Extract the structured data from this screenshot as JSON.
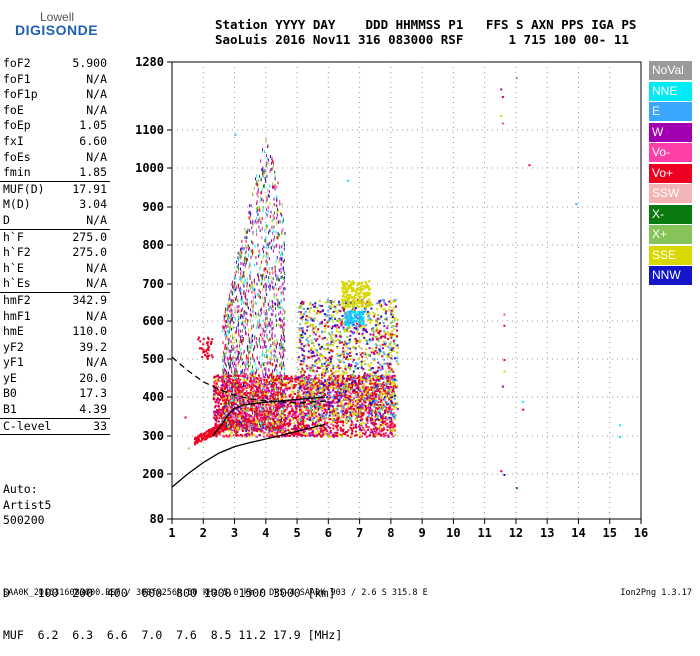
{
  "logo": {
    "brand_top": "Lowell",
    "brand_bottom": "DIGISONDE"
  },
  "header": {
    "line1": "Station YYYY DAY    DDD HHMMSS P1   FFS S AXN PPS IGA PS",
    "line2": "SaoLuis 2016 Nov11 316 083000 RSF      1 715 100 00- 11"
  },
  "params": {
    "groups": [
      [
        [
          "foF2",
          "5.900"
        ],
        [
          "foF1",
          "N/A"
        ],
        [
          "foF1p",
          "N/A"
        ],
        [
          "foE",
          "N/A"
        ],
        [
          "foEp",
          "1.05"
        ],
        [
          "fxI",
          "6.60"
        ],
        [
          "foEs",
          "N/A"
        ],
        [
          "fmin",
          "1.85"
        ]
      ],
      [
        [
          "MUF(D)",
          "17.91"
        ],
        [
          "M(D)",
          "3.04"
        ],
        [
          "D",
          "N/A"
        ]
      ],
      [
        [
          "h`F",
          "275.0"
        ],
        [
          "h`F2",
          "275.0"
        ],
        [
          "h`E",
          "N/A"
        ],
        [
          "h`Es",
          "N/A"
        ]
      ],
      [
        [
          "hmF2",
          "342.9"
        ],
        [
          "hmF1",
          "N/A"
        ],
        [
          "hmE",
          "110.0"
        ],
        [
          "yF2",
          "39.2"
        ],
        [
          "yF1",
          "N/A"
        ],
        [
          "yE",
          "20.0"
        ],
        [
          "B0",
          "17.3"
        ],
        [
          "B1",
          "4.39"
        ]
      ],
      [
        [
          "C-level",
          "33"
        ]
      ]
    ]
  },
  "auto": {
    "line1": "Auto:",
    "line2": "Artist5",
    "line3": "500200"
  },
  "legend": [
    {
      "label": "NoVal",
      "color": "#9a9a9a"
    },
    {
      "label": "NNE",
      "color": "#00eaf5"
    },
    {
      "label": "E",
      "color": "#3aa7ff"
    },
    {
      "label": "W",
      "color": "#a000b0"
    },
    {
      "label": "Vo-",
      "color": "#ff3fa8"
    },
    {
      "label": "Vo+",
      "color": "#ee0020"
    },
    {
      "label": "SSW",
      "color": "#f2b4b4"
    },
    {
      "label": "X-",
      "color": "#0a7a10"
    },
    {
      "label": "X+",
      "color": "#86c45a"
    },
    {
      "label": "SSE",
      "color": "#d8d800"
    },
    {
      "label": "NNW",
      "color": "#1414c8"
    }
  ],
  "freq_table": {
    "row1": "D    100  200  400  600  800 1000 1500 3000 [km]",
    "row2": "MUF  6.2  6.3  6.6  7.0  7.6  8.5 11.2 17.9 [MHz]"
  },
  "footer": "SAA0K_2016316083000.RSF / 300fx256h 50 kHz 5.0 km / DPS-4 SAA0K 903 / 2.6 S 315.8 E",
  "version": "Ion2Png 1.3.17",
  "chart_data": {
    "type": "scatter",
    "title": "",
    "xlabel": "",
    "ylabel": "",
    "xlim": [
      1,
      16
    ],
    "ylim": [
      80,
      1280
    ],
    "x_ticks": [
      1,
      2,
      3,
      4,
      5,
      6,
      7,
      8,
      9,
      10,
      11,
      12,
      13,
      14,
      15,
      16
    ],
    "y_ticks": [
      80,
      200,
      300,
      400,
      500,
      600,
      700,
      800,
      900,
      1000,
      1100,
      1280
    ],
    "y_scale": "nonuniform",
    "grid": "dotted",
    "curves": [
      {
        "name": "",
        "style": "dashed",
        "points": [
          [
            1.0,
            505
          ],
          [
            1.5,
            470
          ],
          [
            2.0,
            440
          ],
          [
            2.5,
            420
          ],
          [
            3.0,
            405
          ],
          [
            3.5,
            395
          ],
          [
            4.0,
            390
          ],
          [
            5.0,
            385
          ],
          [
            6.0,
            390
          ]
        ]
      },
      {
        "name": "",
        "style": "solid",
        "points": [
          [
            2.3,
            300
          ],
          [
            2.6,
            330
          ],
          [
            2.8,
            355
          ],
          [
            3.0,
            370
          ],
          [
            3.3,
            380
          ],
          [
            3.8,
            385
          ],
          [
            4.5,
            390
          ],
          [
            5.2,
            395
          ],
          [
            5.9,
            400
          ]
        ]
      },
      {
        "name": "",
        "style": "solid",
        "points": [
          [
            1.0,
            165
          ],
          [
            1.5,
            200
          ],
          [
            2.0,
            230
          ],
          [
            2.5,
            255
          ],
          [
            3.0,
            272
          ],
          [
            3.5,
            283
          ],
          [
            4.0,
            292
          ],
          [
            4.5,
            302
          ],
          [
            5.0,
            312
          ],
          [
            5.5,
            322
          ],
          [
            5.9,
            330
          ]
        ]
      }
    ]
  }
}
